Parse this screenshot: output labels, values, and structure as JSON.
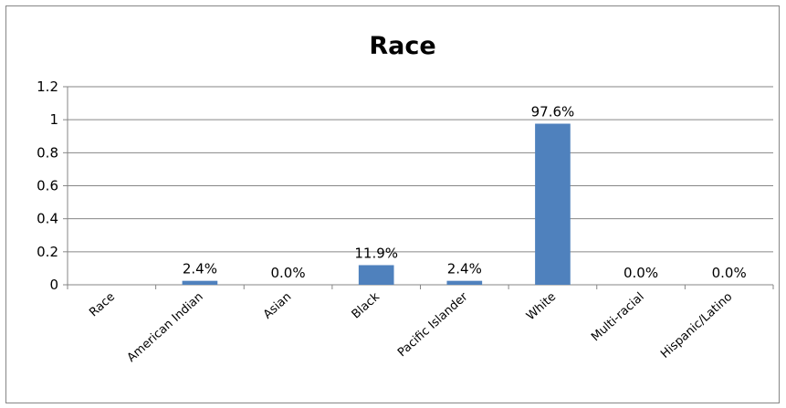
{
  "chart_data": {
    "type": "bar",
    "title": "Race",
    "xlabel": "",
    "ylabel": "",
    "ylim": [
      0,
      1.2
    ],
    "yticks": [
      "0",
      "0.2",
      "0.4",
      "0.6",
      "0.8",
      "1",
      "1.2"
    ],
    "grid": true,
    "legend": "none",
    "bar_color": "#4F81BD",
    "categories": [
      "Race",
      "American Indian",
      "Asian",
      "Black",
      "Pacific Islander",
      "White",
      "Multi-racial",
      "Hispanic/Latino"
    ],
    "values": [
      null,
      0.024,
      0.0,
      0.119,
      0.024,
      0.976,
      0.0,
      0.0
    ],
    "data_labels": [
      "",
      "2.4%",
      "0.0%",
      "11.9%",
      "2.4%",
      "97.6%",
      "0.0%",
      "0.0%"
    ]
  }
}
